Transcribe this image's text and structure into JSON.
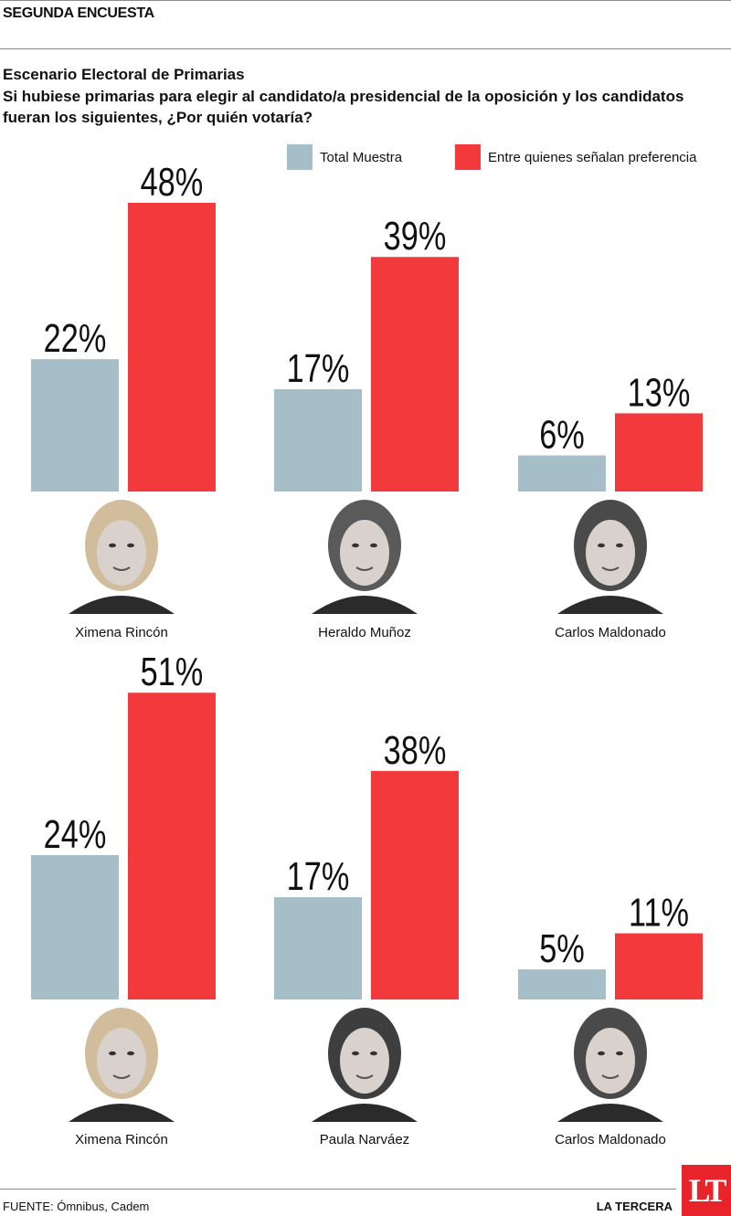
{
  "header": {
    "title": "SEGUNDA ENCUESTA"
  },
  "colors": {
    "total": "#a5bec7",
    "preference": "#f23a3d"
  },
  "chart_data": [
    {
      "type": "bar",
      "title": "Escenario Electoral de Primarias",
      "subtitle": "Si hubiese primarias para elegir al candidato/a presidencial de la oposición y los candidatos fueran los siguientes, ¿Por quién votaría?",
      "categories": [
        "Ximena Rincón",
        "Heraldo Muñoz",
        "Carlos Maldonado"
      ],
      "series": [
        {
          "name": "Total Muestra",
          "values": [
            22,
            17,
            6
          ],
          "labels": [
            "22%",
            "17%",
            "6%"
          ]
        },
        {
          "name": "Entre quienes señalan preferencia",
          "values": [
            48,
            39,
            13
          ],
          "labels": [
            "48%",
            "39%",
            "13%"
          ]
        }
      ],
      "legend": "top-right"
    },
    {
      "type": "bar",
      "categories": [
        "Ximena Rincón",
        "Paula Narváez",
        "Carlos Maldonado"
      ],
      "series": [
        {
          "name": "Total Muestra",
          "values": [
            24,
            17,
            5
          ],
          "labels": [
            "24%",
            "17%",
            "5%"
          ]
        },
        {
          "name": "Entre quienes señalan preferencia",
          "values": [
            51,
            38,
            11
          ],
          "labels": [
            "51%",
            "38%",
            "11%"
          ]
        }
      ]
    }
  ],
  "footer": {
    "source": "FUENTE: Ómnibus, Cadem",
    "brand": "LA TERCERA",
    "logo": "LT"
  }
}
